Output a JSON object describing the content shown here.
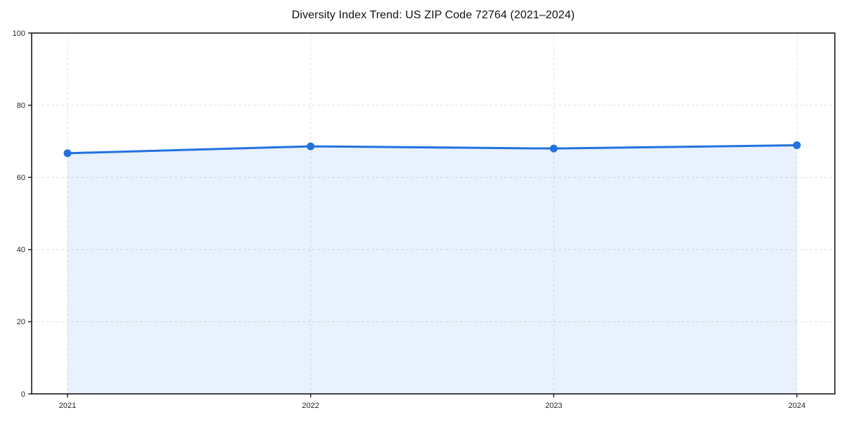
{
  "chart": {
    "title": "Diversity Index Trend: US ZIP Code 72764 (2021–2024)"
  },
  "chart_data": {
    "type": "area",
    "title": "Diversity Index Trend: US ZIP Code 72764 (2021–2024)",
    "categories": [
      "2021",
      "2022",
      "2023",
      "2024"
    ],
    "x": [
      2021,
      2022,
      2023,
      2024
    ],
    "values": [
      66.7,
      68.6,
      68.0,
      68.9
    ],
    "xlabel": "",
    "ylabel": "",
    "ylim": [
      0,
      100
    ],
    "yticks": [
      0,
      20,
      40,
      60,
      80,
      100
    ],
    "grid": true,
    "grid_style": "dashed",
    "legend": false,
    "marker": "circle",
    "colors": {
      "line": "#2272e0",
      "marker": "#2272e0",
      "fill": "#2272e0",
      "fill_opacity": 0.1,
      "gridline": "#e2e2e2",
      "spine": "#1a1a1a",
      "tick_label": "#262626",
      "title": "#111111",
      "background": "#ffffff"
    }
  }
}
